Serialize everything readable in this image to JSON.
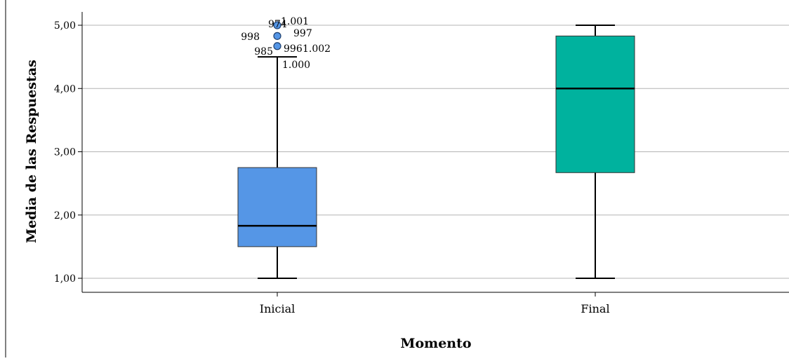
{
  "chart_data": {
    "type": "boxplot",
    "xlabel": "Momento",
    "ylabel": "Media de las Respuestas",
    "ylim": [
      1,
      5
    ],
    "y_ticks": [
      "1,00",
      "2,00",
      "3,00",
      "4,00",
      "5,00"
    ],
    "grid": true,
    "categories": [
      "Inicial",
      "Final"
    ],
    "boxes": [
      {
        "category": "Inicial",
        "color": "#5596e6",
        "whisker_low": 1.0,
        "q1": 1.5,
        "median": 1.83,
        "q3": 2.75,
        "whisker_high": 4.5,
        "outliers": [
          {
            "value": 5.0,
            "labels": [
              "974",
              "1.001"
            ]
          },
          {
            "value": 4.83,
            "labels": [
              "998",
              "997"
            ]
          },
          {
            "value": 4.67,
            "labels": [
              "985",
              "996",
              "1.002",
              "1.000"
            ]
          }
        ]
      },
      {
        "category": "Final",
        "color": "#00b29e",
        "whisker_low": 1.0,
        "q1": 2.67,
        "median": 4.0,
        "q3": 4.83,
        "whisker_high": 5.0,
        "outliers": []
      }
    ]
  }
}
